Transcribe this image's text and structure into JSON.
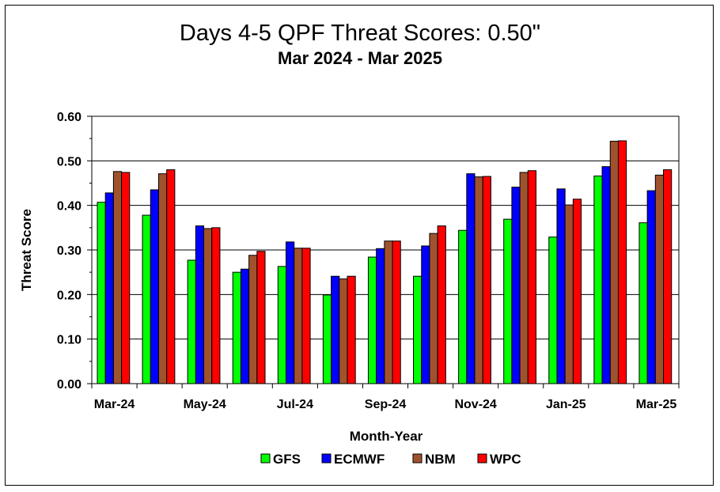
{
  "chart_data": {
    "type": "bar",
    "title": "Days 4-5 QPF Threat Scores:  0.50\"",
    "subtitle": "Mar 2024 - Mar 2025",
    "xlabel": "Month-Year",
    "ylabel": "Threat Score",
    "ylim": [
      0,
      0.6
    ],
    "yticks": [
      "0.00",
      "0.10",
      "0.20",
      "0.30",
      "0.40",
      "0.50",
      "0.60"
    ],
    "grid": true,
    "legend_position": "bottom",
    "categories": [
      "Mar-24",
      "Apr-24",
      "May-24",
      "Jun-24",
      "Jul-24",
      "Aug-24",
      "Sep-24",
      "Oct-24",
      "Nov-24",
      "Dec-24",
      "Jan-25",
      "Feb-25",
      "Mar-25"
    ],
    "xtick_labels": [
      "Mar-24",
      "May-24",
      "Jul-24",
      "Sep-24",
      "Nov-24",
      "Jan-25",
      "Mar-25"
    ],
    "series": [
      {
        "name": "GFS",
        "color": "#00ff00",
        "values": [
          0.407,
          0.378,
          0.277,
          0.25,
          0.263,
          0.199,
          0.284,
          0.241,
          0.344,
          0.369,
          0.329,
          0.466,
          0.361
        ]
      },
      {
        "name": "ECMWF",
        "color": "#0000ff",
        "values": [
          0.428,
          0.435,
          0.354,
          0.257,
          0.318,
          0.241,
          0.303,
          0.309,
          0.471,
          0.441,
          0.437,
          0.487,
          0.433
        ]
      },
      {
        "name": "NBM",
        "color": "#a0522d",
        "values": [
          0.476,
          0.471,
          0.348,
          0.288,
          0.304,
          0.235,
          0.32,
          0.337,
          0.464,
          0.474,
          0.401,
          0.544,
          0.468
        ]
      },
      {
        "name": "WPC",
        "color": "#ff0000",
        "values": [
          0.474,
          0.48,
          0.35,
          0.297,
          0.304,
          0.241,
          0.32,
          0.354,
          0.465,
          0.478,
          0.414,
          0.545,
          0.48
        ]
      }
    ]
  }
}
